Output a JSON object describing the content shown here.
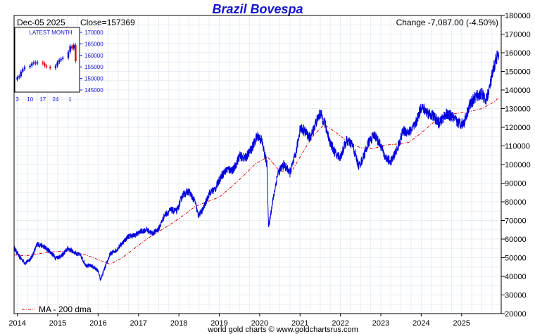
{
  "chart_data": {
    "type": "line",
    "title": "Brazil Bovespa",
    "header_date": "Dec-05  2025",
    "header_close": "Close=157369",
    "header_change": "Change -7,087.00 (-4.50%)",
    "credit": "world gold charts © www.goldchartsrus.com",
    "ylim": [
      20000,
      180000
    ],
    "y_ticks": [
      "20000",
      "30000",
      "40000",
      "50000",
      "60000",
      "70000",
      "80000",
      "90000",
      "100000",
      "110000",
      "120000",
      "130000",
      "140000",
      "150000",
      "160000",
      "170000",
      "180000"
    ],
    "x_ticks": [
      "2014",
      "2015",
      "2016",
      "2017",
      "2018",
      "2019",
      "2020",
      "2021",
      "2022",
      "2023",
      "2024",
      "2025"
    ],
    "grid": true,
    "series": [
      {
        "name": "",
        "color": "#0000dd",
        "x": [
          2013.92,
          2014.05,
          2014.2,
          2014.35,
          2014.5,
          2014.65,
          2014.8,
          2014.95,
          2015.1,
          2015.25,
          2015.4,
          2015.55,
          2015.7,
          2015.85,
          2016.0,
          2016.06,
          2016.15,
          2016.3,
          2016.45,
          2016.6,
          2016.75,
          2016.9,
          2017.05,
          2017.2,
          2017.35,
          2017.5,
          2017.65,
          2017.8,
          2017.95,
          2018.1,
          2018.25,
          2018.4,
          2018.48,
          2018.6,
          2018.75,
          2018.9,
          2019.05,
          2019.2,
          2019.35,
          2019.5,
          2019.65,
          2019.8,
          2019.95,
          2020.05,
          2020.18,
          2020.22,
          2020.3,
          2020.45,
          2020.6,
          2020.75,
          2020.9,
          2021.0,
          2021.1,
          2021.25,
          2021.4,
          2021.5,
          2021.6,
          2021.75,
          2021.9,
          2022.0,
          2022.15,
          2022.3,
          2022.45,
          2022.55,
          2022.7,
          2022.85,
          2023.0,
          2023.1,
          2023.25,
          2023.4,
          2023.55,
          2023.7,
          2023.85,
          2024.0,
          2024.15,
          2024.3,
          2024.45,
          2024.6,
          2024.75,
          2024.9,
          2025.05,
          2025.2,
          2025.35,
          2025.5,
          2025.6,
          2025.7,
          2025.8,
          2025.87,
          2025.92
        ],
        "values": [
          55500,
          50500,
          47000,
          50000,
          57500,
          56000,
          53500,
          50000,
          51000,
          55000,
          53000,
          51500,
          46000,
          45500,
          43000,
          38000,
          43500,
          52000,
          54000,
          58000,
          61500,
          62000,
          64000,
          65000,
          63000,
          65500,
          73000,
          75500,
          75000,
          84000,
          85500,
          80000,
          72500,
          76000,
          84500,
          87000,
          94000,
          97500,
          97000,
          104500,
          103500,
          108500,
          115500,
          113000,
          100000,
          66000,
          77500,
          95500,
          100000,
          95500,
          106000,
          119500,
          118500,
          114000,
          123000,
          127500,
          123000,
          111500,
          105000,
          104000,
          113000,
          110500,
          99000,
          103000,
          112000,
          116000,
          110000,
          104000,
          101500,
          108000,
          118000,
          117500,
          121000,
          131000,
          128000,
          126000,
          122000,
          127000,
          126000,
          122500,
          122000,
          132000,
          136500,
          138000,
          134000,
          142000,
          152000,
          158000,
          157500
        ]
      },
      {
        "name": "MA - 200 dma",
        "color": "#e00000",
        "x": [
          2013.92,
          2014.2,
          2014.5,
          2014.8,
          2015.1,
          2015.4,
          2015.7,
          2016.0,
          2016.3,
          2016.6,
          2016.9,
          2017.2,
          2017.5,
          2017.8,
          2018.1,
          2018.4,
          2018.7,
          2019.0,
          2019.3,
          2019.6,
          2019.9,
          2020.2,
          2020.5,
          2020.8,
          2021.0,
          2021.3,
          2021.6,
          2021.9,
          2022.2,
          2022.5,
          2022.8,
          2023.1,
          2023.4,
          2023.7,
          2024.0,
          2024.3,
          2024.6,
          2024.9,
          2025.2,
          2025.5,
          2025.8,
          2025.92
        ],
        "values": [
          51500,
          51000,
          52000,
          53000,
          53500,
          53000,
          51500,
          49000,
          46500,
          50000,
          55000,
          60000,
          64000,
          68000,
          72500,
          77500,
          80000,
          82500,
          88000,
          94000,
          100500,
          104000,
          96500,
          96500,
          104000,
          115000,
          121500,
          117000,
          112000,
          109000,
          108500,
          110500,
          111000,
          112000,
          117000,
          122500,
          127000,
          127500,
          128500,
          130000,
          133500,
          136000
        ]
      }
    ],
    "legend": {
      "label": "MA - 200 dma",
      "placement": "bottom-left"
    },
    "inset": {
      "title": "LATEST MONTH",
      "ylim": [
        145000,
        170000
      ],
      "y_ticks": [
        "145000",
        "150000",
        "155000",
        "160000",
        "165000",
        "170000"
      ],
      "x_ticks": [
        "3",
        "10",
        "17",
        "24",
        "1"
      ],
      "x_tick_days": [
        3,
        10,
        17,
        24,
        32
      ],
      "candles": [
        {
          "day": 3,
          "open": 149500,
          "close": 150500,
          "up": true
        },
        {
          "day": 4,
          "open": 150500,
          "close": 151000,
          "up": true
        },
        {
          "day": 5,
          "open": 151000,
          "close": 153000,
          "up": true
        },
        {
          "day": 6,
          "open": 153000,
          "close": 154000,
          "up": true
        },
        {
          "day": 7,
          "open": 154000,
          "close": 155000,
          "up": true
        },
        {
          "day": 10,
          "open": 155000,
          "close": 155500,
          "up": true
        },
        {
          "day": 11,
          "open": 155500,
          "close": 156500,
          "up": true
        },
        {
          "day": 12,
          "open": 156500,
          "close": 157000,
          "up": true
        },
        {
          "day": 13,
          "open": 157000,
          "close": 156500,
          "up": false
        },
        {
          "day": 14,
          "open": 156500,
          "close": 157000,
          "up": true
        },
        {
          "day": 17,
          "open": 157000,
          "close": 156500,
          "up": false
        },
        {
          "day": 18,
          "open": 156500,
          "close": 155500,
          "up": false
        },
        {
          "day": 19,
          "open": 155500,
          "close": 155000,
          "up": false
        },
        {
          "day": 21,
          "open": 155000,
          "close": 154500,
          "up": false
        },
        {
          "day": 24,
          "open": 154500,
          "close": 155500,
          "up": true
        },
        {
          "day": 25,
          "open": 155500,
          "close": 157000,
          "up": true
        },
        {
          "day": 26,
          "open": 157000,
          "close": 158000,
          "up": true
        },
        {
          "day": 27,
          "open": 158000,
          "close": 158500,
          "up": true
        },
        {
          "day": 28,
          "open": 158500,
          "close": 159000,
          "up": true
        },
        {
          "day": 31,
          "open": 159000,
          "close": 161500,
          "up": true
        },
        {
          "day": 32,
          "open": 161500,
          "close": 164000,
          "up": true
        },
        {
          "day": 33,
          "open": 164000,
          "close": 163000,
          "up": false
        },
        {
          "day": 34,
          "open": 163000,
          "close": 164500,
          "up": true
        },
        {
          "day": 35,
          "open": 164500,
          "close": 157500,
          "up": false
        }
      ]
    }
  }
}
